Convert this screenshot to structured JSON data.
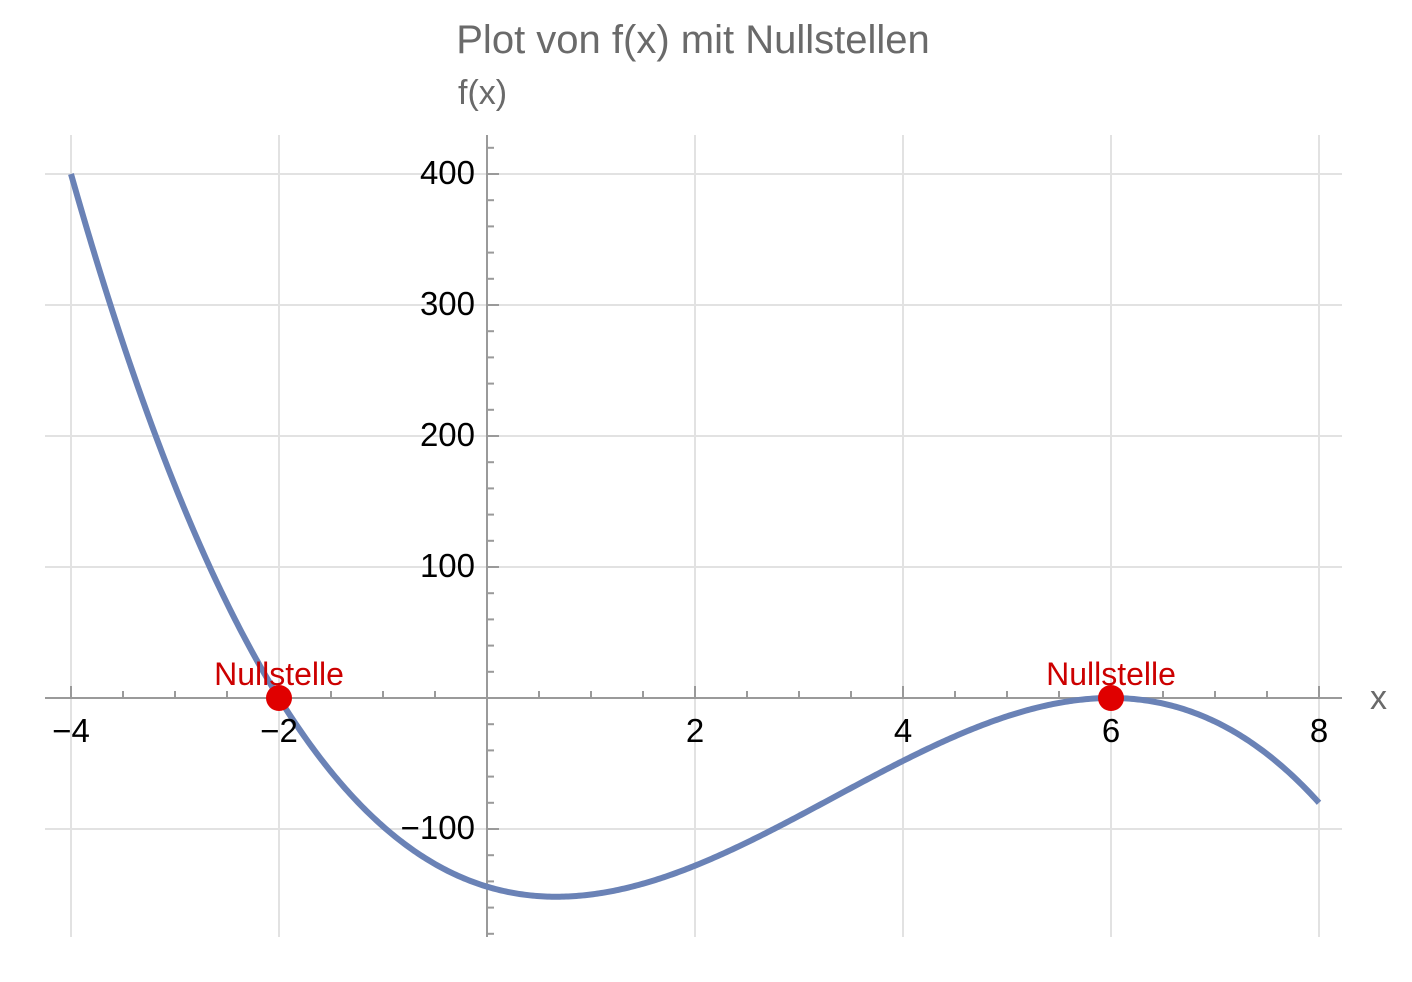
{
  "chart_data": {
    "type": "line",
    "title": "Plot von f(x) mit Nullstellen",
    "xlabel": "x",
    "ylabel": "f(x)",
    "function": "f(x) = -2(x+2)(x-6)^2",
    "xlim": [
      -4,
      8
    ],
    "ylim": [
      -180,
      430
    ],
    "grid": true,
    "x_ticks": [
      -4,
      -2,
      2,
      4,
      6,
      8
    ],
    "x_tick_labels": [
      "−4",
      "−2",
      "2",
      "4",
      "6",
      "8"
    ],
    "y_ticks": [
      400,
      300,
      200,
      100,
      -100
    ],
    "y_tick_labels": [
      "400",
      "300",
      "200",
      "100",
      "−100"
    ],
    "series": [
      {
        "name": "f(x)",
        "color": "#6a82b6",
        "x": [
          -4,
          -3.5,
          -3,
          -2.5,
          -2,
          -1.5,
          -1,
          -0.5,
          0,
          0.5,
          0.67,
          1,
          1.5,
          2,
          2.5,
          3,
          3.5,
          4,
          4.5,
          5,
          5.5,
          6,
          6.5,
          7,
          7.5,
          8
        ],
        "y": [
          400,
          270.75,
          162,
          76.75,
          0,
          -59.5,
          -98,
          -126.75,
          -144,
          -151.25,
          -151.7,
          -147,
          -136.5,
          -128,
          -110.25,
          -90,
          -61.25,
          -48,
          -29.25,
          -14,
          -3.75,
          0,
          -4.25,
          -18,
          -42.75,
          -80
        ]
      }
    ],
    "points": [
      {
        "x": -2,
        "y": 0,
        "label": "Nullstelle",
        "color": "#e00000"
      },
      {
        "x": 6,
        "y": 0,
        "label": "Nullstelle",
        "color": "#e00000"
      }
    ]
  },
  "labels": {
    "title": "Plot von f(x) mit Nullstellen",
    "xlabel": "x",
    "ylabel": "f(x)",
    "annotation": "Nullstelle"
  }
}
